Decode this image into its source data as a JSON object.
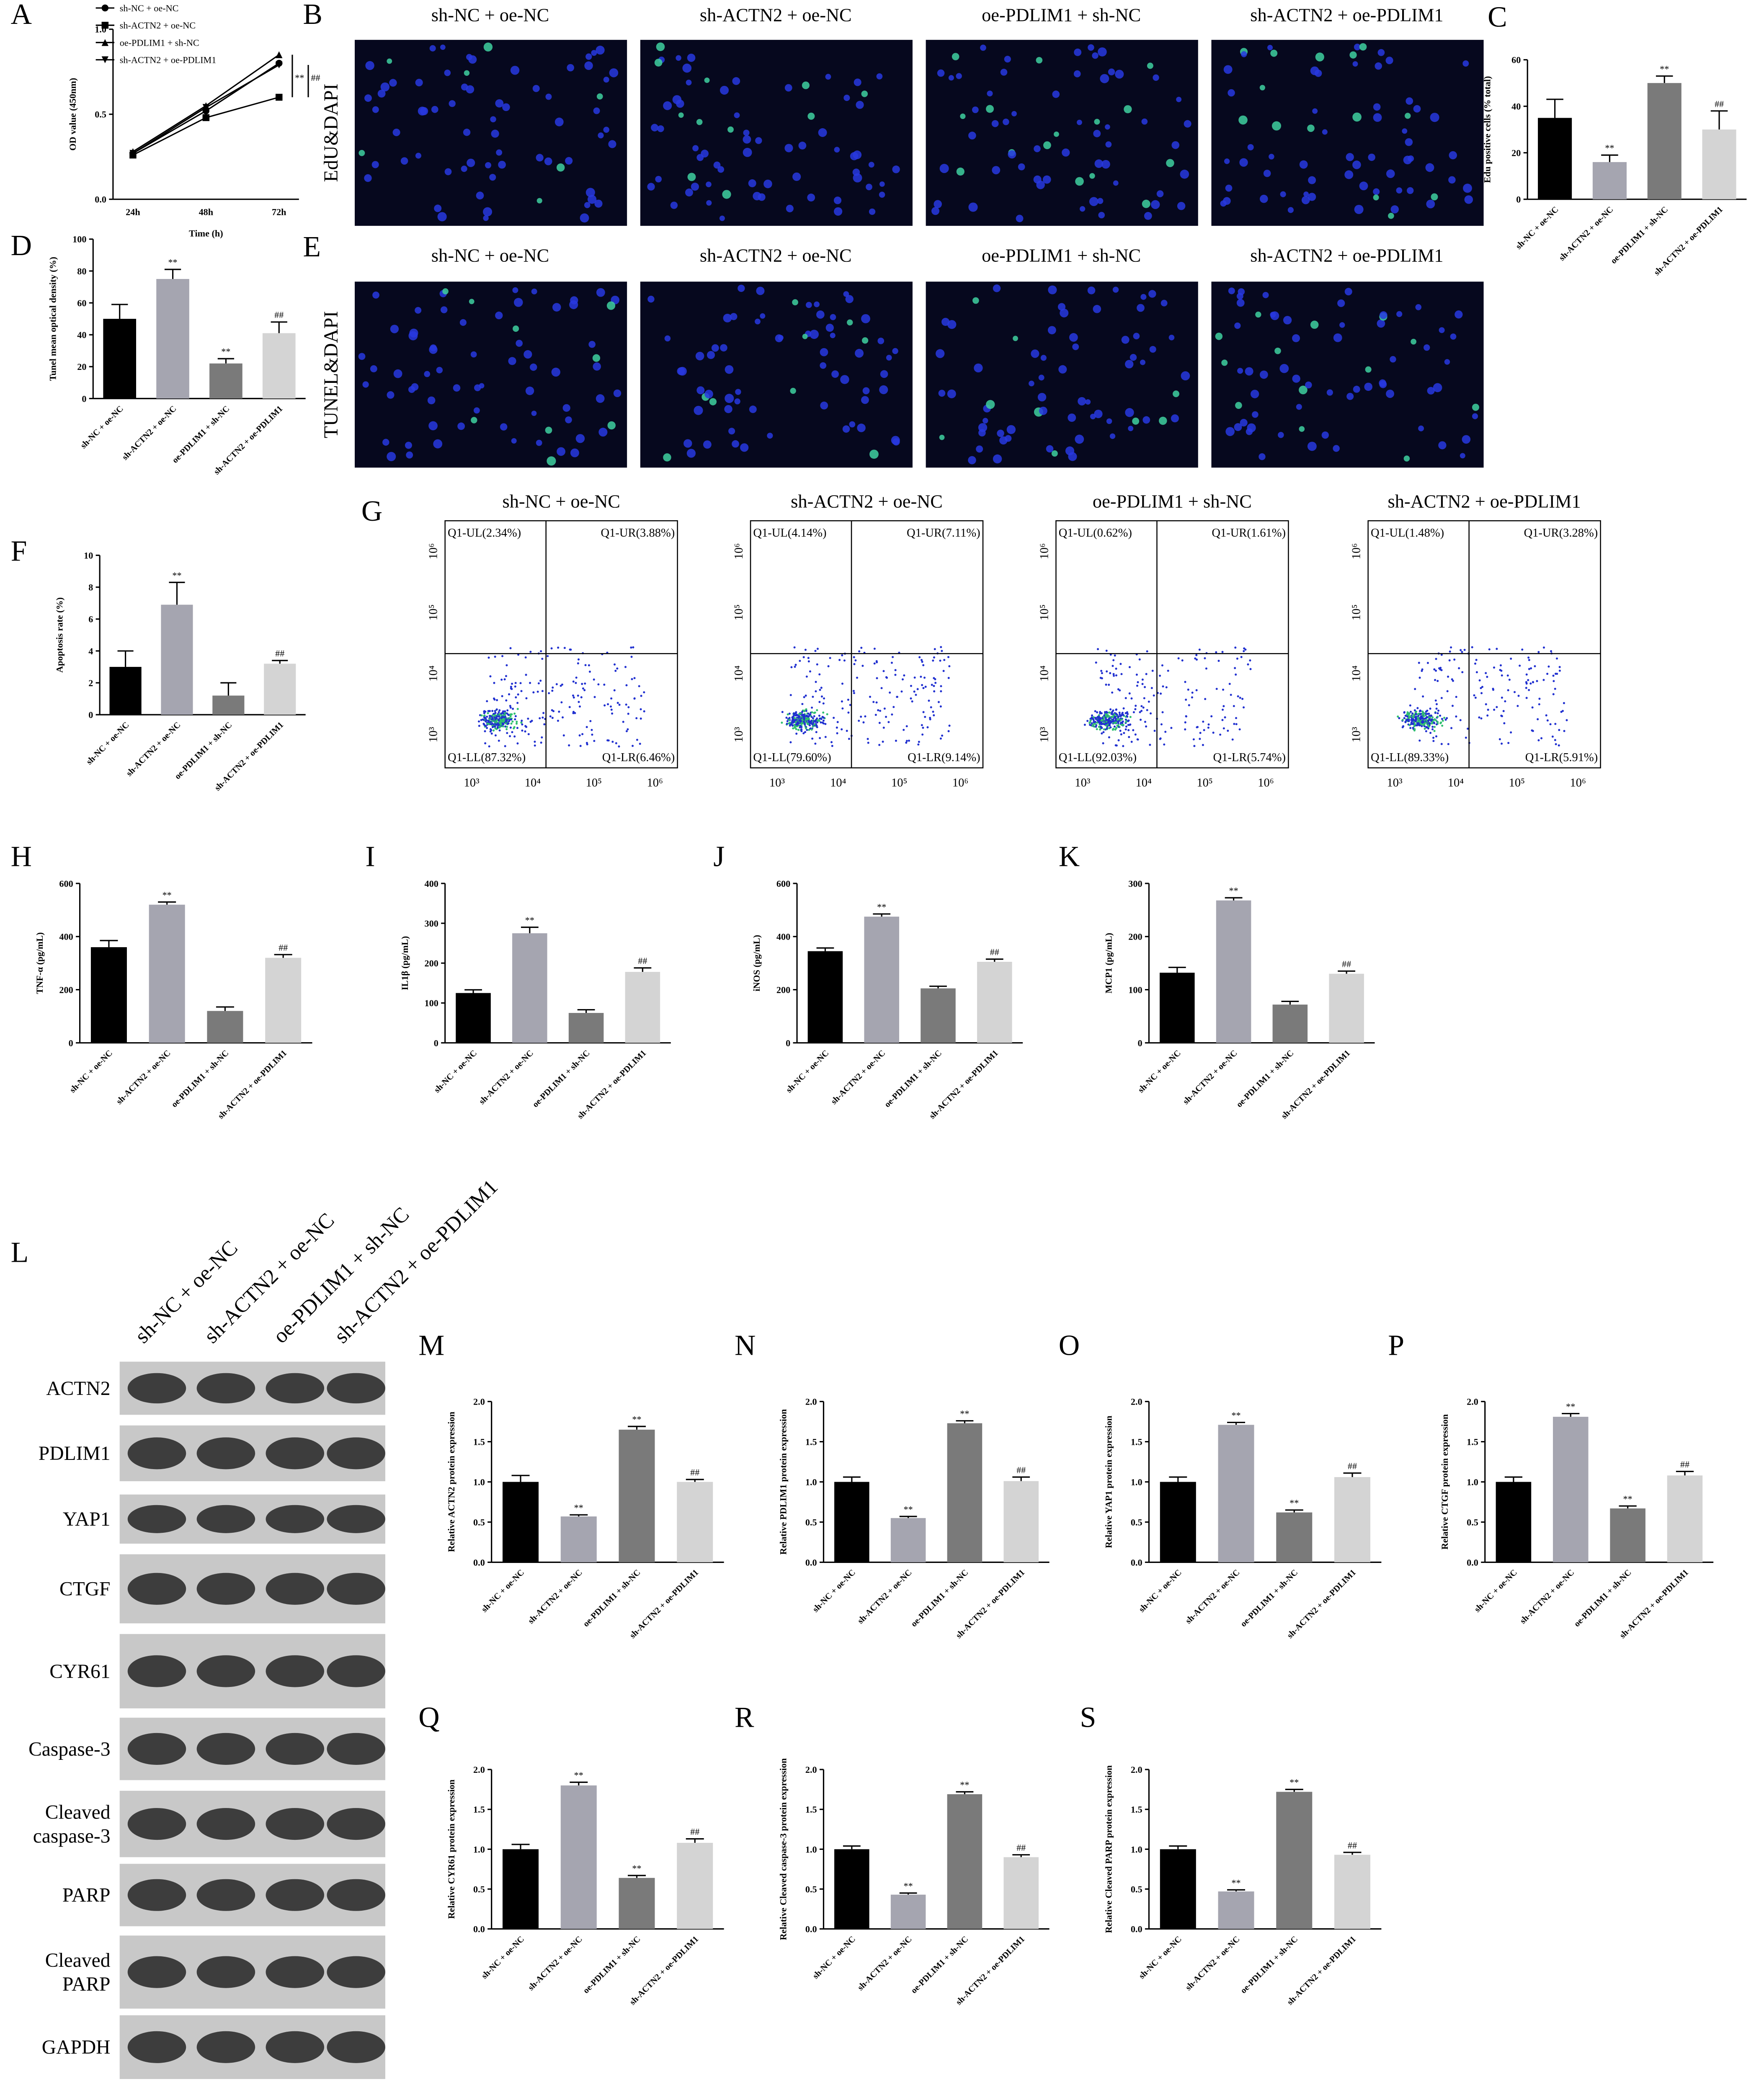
{
  "chart_data": [
    {
      "type": "line",
      "label": "A",
      "x_label": "Time (h)",
      "y_label": "OD value (450nm)",
      "categories": [
        "24h",
        "48h",
        "72h"
      ],
      "series": [
        {
          "name": "sh-NC + oe-NC",
          "color": "#000000",
          "marker": "circle",
          "values": [
            0.27,
            0.52,
            0.8
          ]
        },
        {
          "name": "sh-ACTN2 + oe-NC",
          "color": "#000000",
          "marker": "square",
          "values": [
            0.26,
            0.48,
            0.6
          ]
        },
        {
          "name": "oe-PDLIM1 + sh-NC",
          "color": "#000000",
          "marker": "triangle-up",
          "values": [
            0.28,
            0.55,
            0.85
          ]
        },
        {
          "name": "sh-ACTN2 + oe-PDLIM1",
          "color": "#000000",
          "marker": "triangle-down",
          "values": [
            0.27,
            0.54,
            0.79
          ]
        }
      ],
      "ylim": [
        0,
        1
      ],
      "yticks": [
        {
          "value": 0,
          "label": "0.0"
        },
        {
          "value": 0.5,
          "label": "0.5"
        },
        {
          "value": 1,
          "label": "1.0"
        }
      ],
      "annotations": [
        "**",
        "##"
      ]
    },
    {
      "type": "bar",
      "label": "C",
      "y_label": "Edu positive cells (% total)",
      "categories": [
        "sh-NC + oe-NC",
        "sh-ACTN2 + oe-NC",
        "oe-PDLIM1 + sh-NC",
        "sh-ACTN2 + oe-PDLIM1"
      ],
      "colors": [
        "#000000",
        "#a5a5b0",
        "#7a7a7a",
        "#d4d4d4"
      ],
      "values": [
        35,
        16,
        50,
        30
      ],
      "errors": [
        8,
        3,
        3,
        8
      ],
      "annotations": [
        null,
        "**",
        "**",
        "##"
      ],
      "ylim": [
        0,
        60
      ],
      "yticks": [
        0,
        20,
        40,
        60
      ]
    },
    {
      "type": "bar",
      "label": "D",
      "y_label": "Tunel mean optical density (%)",
      "categories": [
        "sh-NC + oe-NC",
        "sh-ACTN2 + oe-NC",
        "oe-PDLIM1 + sh-NC",
        "sh-ACTN2 + oe-PDLIM1"
      ],
      "colors": [
        "#000000",
        "#a5a5b0",
        "#7a7a7a",
        "#d4d4d4"
      ],
      "values": [
        50,
        75,
        22,
        41
      ],
      "errors": [
        9,
        6,
        3,
        7
      ],
      "annotations": [
        null,
        "**",
        "**",
        "##"
      ],
      "ylim": [
        0,
        100
      ],
      "yticks": [
        0,
        20,
        40,
        60,
        80,
        100
      ]
    },
    {
      "type": "bar",
      "label": "F",
      "y_label": "Apoptosis rate (%)",
      "categories": [
        "sh-NC + oe-NC",
        "sh-ACTN2 + oe-NC",
        "oe-PDLIM1 + sh-NC",
        "sh-ACTN2 + oe-PDLIM1"
      ],
      "colors": [
        "#000000",
        "#a5a5b0",
        "#7a7a7a",
        "#d4d4d4"
      ],
      "values": [
        3.0,
        6.9,
        1.2,
        3.2
      ],
      "errors": [
        1.0,
        1.4,
        0.8,
        0.2
      ],
      "annotations": [
        null,
        "**",
        null,
        "##"
      ],
      "ylim": [
        0,
        10
      ],
      "yticks": [
        0,
        2,
        4,
        6,
        8,
        10
      ]
    },
    {
      "type": "bar",
      "label": "H",
      "y_label": "TNF-α (pg/mL)",
      "categories": [
        "sh-NC + oe-NC",
        "sh-ACTN2 + oe-NC",
        "oe-PDLIM1 + sh-NC",
        "sh-ACTN2 + oe-PDLIM1"
      ],
      "colors": [
        "#000000",
        "#a5a5b0",
        "#7a7a7a",
        "#d4d4d4"
      ],
      "values": [
        360,
        520,
        120,
        320
      ],
      "errors": [
        25,
        10,
        15,
        12
      ],
      "annotations": [
        null,
        "**",
        null,
        "##"
      ],
      "ylim": [
        0,
        600
      ],
      "yticks": [
        0,
        200,
        400,
        600
      ]
    },
    {
      "type": "bar",
      "label": "I",
      "y_label": "IL1β (pg/mL)",
      "categories": [
        "sh-NC + oe-NC",
        "sh-ACTN2 + oe-NC",
        "oe-PDLIM1 + sh-NC",
        "sh-ACTN2 + oe-PDLIM1"
      ],
      "colors": [
        "#000000",
        "#a5a5b0",
        "#7a7a7a",
        "#d4d4d4"
      ],
      "values": [
        125,
        275,
        75,
        178
      ],
      "errors": [
        8,
        15,
        8,
        10
      ],
      "annotations": [
        null,
        "**",
        null,
        "##"
      ],
      "ylim": [
        0,
        400
      ],
      "yticks": [
        0,
        100,
        200,
        300,
        400
      ]
    },
    {
      "type": "bar",
      "label": "J",
      "y_label": "iNOS (pg/mL)",
      "categories": [
        "sh-NC + oe-NC",
        "sh-ACTN2 + oe-NC",
        "oe-PDLIM1 + sh-NC",
        "sh-ACTN2 + oe-PDLIM1"
      ],
      "colors": [
        "#000000",
        "#a5a5b0",
        "#7a7a7a",
        "#d4d4d4"
      ],
      "values": [
        345,
        475,
        205,
        305
      ],
      "errors": [
        12,
        10,
        8,
        10
      ],
      "annotations": [
        null,
        "**",
        null,
        "##"
      ],
      "ylim": [
        0,
        600
      ],
      "yticks": [
        0,
        200,
        400,
        600
      ]
    },
    {
      "type": "bar",
      "label": "K",
      "y_label": "MCP1 (pg/mL)",
      "categories": [
        "sh-NC + oe-NC",
        "sh-ACTN2 + oe-NC",
        "oe-PDLIM1 + sh-NC",
        "sh-ACTN2 + oe-PDLIM1"
      ],
      "colors": [
        "#000000",
        "#a5a5b0",
        "#7a7a7a",
        "#d4d4d4"
      ],
      "values": [
        132,
        268,
        72,
        130
      ],
      "errors": [
        10,
        5,
        6,
        5
      ],
      "annotations": [
        null,
        "**",
        null,
        "##"
      ],
      "ylim": [
        0,
        300
      ],
      "yticks": [
        0,
        100,
        200,
        300
      ]
    },
    {
      "type": "bar",
      "label": "M",
      "y_label": "Relative ACTN2 protein expression",
      "categories": [
        "sh-NC + oe-NC",
        "sh-ACTN2 + oe-NC",
        "oe-PDLIM1 + sh-NC",
        "sh-ACTN2 + oe-PDLIM1"
      ],
      "colors": [
        "#000000",
        "#a5a5b0",
        "#7a7a7a",
        "#d4d4d4"
      ],
      "values": [
        1.0,
        0.57,
        1.65,
        1.0
      ],
      "errors": [
        0.08,
        0.02,
        0.04,
        0.03
      ],
      "annotations": [
        null,
        "**",
        "**",
        "##"
      ],
      "ylim": [
        0,
        2
      ],
      "yticks": [
        {
          "value": 0,
          "label": "0.0"
        },
        {
          "value": 0.5,
          "label": "0.5"
        },
        {
          "value": 1,
          "label": "1.0"
        },
        {
          "value": 1.5,
          "label": "1.5"
        },
        {
          "value": 2,
          "label": "2.0"
        }
      ]
    },
    {
      "type": "bar",
      "label": "N",
      "y_label": "Relative PDLIM1 protein expression",
      "categories": [
        "sh-NC + oe-NC",
        "sh-ACTN2 + oe-NC",
        "oe-PDLIM1 + sh-NC",
        "sh-ACTN2 + oe-PDLIM1"
      ],
      "colors": [
        "#000000",
        "#a5a5b0",
        "#7a7a7a",
        "#d4d4d4"
      ],
      "values": [
        1.0,
        0.55,
        1.73,
        1.01
      ],
      "errors": [
        0.06,
        0.02,
        0.03,
        0.05
      ],
      "annotations": [
        null,
        "**",
        "**",
        "##"
      ],
      "ylim": [
        0,
        2
      ],
      "yticks": [
        {
          "value": 0,
          "label": "0.0"
        },
        {
          "value": 0.5,
          "label": "0.5"
        },
        {
          "value": 1,
          "label": "1.0"
        },
        {
          "value": 1.5,
          "label": "1.5"
        },
        {
          "value": 2,
          "label": "2.0"
        }
      ]
    },
    {
      "type": "bar",
      "label": "O",
      "y_label": "Relative YAP1 protein expression",
      "categories": [
        "sh-NC + oe-NC",
        "sh-ACTN2 + oe-NC",
        "oe-PDLIM1 + sh-NC",
        "sh-ACTN2 + oe-PDLIM1"
      ],
      "colors": [
        "#000000",
        "#a5a5b0",
        "#7a7a7a",
        "#d4d4d4"
      ],
      "values": [
        1.0,
        1.71,
        0.62,
        1.06
      ],
      "errors": [
        0.06,
        0.03,
        0.03,
        0.05
      ],
      "annotations": [
        null,
        "**",
        "**",
        "##"
      ],
      "ylim": [
        0,
        2
      ],
      "yticks": [
        {
          "value": 0,
          "label": "0.0"
        },
        {
          "value": 0.5,
          "label": "0.5"
        },
        {
          "value": 1,
          "label": "1.0"
        },
        {
          "value": 1.5,
          "label": "1.5"
        },
        {
          "value": 2,
          "label": "2.0"
        }
      ]
    },
    {
      "type": "bar",
      "label": "P",
      "y_label": "Relative CTGF protein expression",
      "categories": [
        "sh-NC + oe-NC",
        "sh-ACTN2 + oe-NC",
        "oe-PDLIM1 + sh-NC",
        "sh-ACTN2 + oe-PDLIM1"
      ],
      "colors": [
        "#000000",
        "#a5a5b0",
        "#7a7a7a",
        "#d4d4d4"
      ],
      "values": [
        1.0,
        1.81,
        0.67,
        1.08
      ],
      "errors": [
        0.06,
        0.04,
        0.03,
        0.05
      ],
      "annotations": [
        null,
        "**",
        "**",
        "##"
      ],
      "ylim": [
        0,
        2
      ],
      "yticks": [
        {
          "value": 0,
          "label": "0.0"
        },
        {
          "value": 0.5,
          "label": "0.5"
        },
        {
          "value": 1,
          "label": "1.0"
        },
        {
          "value": 1.5,
          "label": "1.5"
        },
        {
          "value": 2,
          "label": "2.0"
        }
      ]
    },
    {
      "type": "bar",
      "label": "Q",
      "y_label": "Relative CYR61 protein expression",
      "categories": [
        "sh-NC + oe-NC",
        "sh-ACTN2 + oe-NC",
        "oe-PDLIM1 + sh-NC",
        "sh-ACTN2 + oe-PDLIM1"
      ],
      "colors": [
        "#000000",
        "#a5a5b0",
        "#7a7a7a",
        "#d4d4d4"
      ],
      "values": [
        1.0,
        1.8,
        0.64,
        1.08
      ],
      "errors": [
        0.06,
        0.04,
        0.03,
        0.05
      ],
      "annotations": [
        null,
        "**",
        "**",
        "##"
      ],
      "ylim": [
        0,
        2
      ],
      "yticks": [
        {
          "value": 0,
          "label": "0.0"
        },
        {
          "value": 0.5,
          "label": "0.5"
        },
        {
          "value": 1,
          "label": "1.0"
        },
        {
          "value": 1.5,
          "label": "1.5"
        },
        {
          "value": 2,
          "label": "2.0"
        }
      ]
    },
    {
      "type": "bar",
      "label": "R",
      "y_label": "Relative Cleaved caspase-3 protein expression",
      "categories": [
        "sh-NC + oe-NC",
        "sh-ACTN2 + oe-NC",
        "oe-PDLIM1 + sh-NC",
        "sh-ACTN2 + oe-PDLIM1"
      ],
      "colors": [
        "#000000",
        "#a5a5b0",
        "#7a7a7a",
        "#d4d4d4"
      ],
      "values": [
        1.0,
        0.43,
        1.69,
        0.9
      ],
      "errors": [
        0.04,
        0.02,
        0.03,
        0.03
      ],
      "annotations": [
        null,
        "**",
        "**",
        "##"
      ],
      "ylim": [
        0,
        2
      ],
      "yticks": [
        {
          "value": 0,
          "label": "0.0"
        },
        {
          "value": 0.5,
          "label": "0.5"
        },
        {
          "value": 1,
          "label": "1.0"
        },
        {
          "value": 1.5,
          "label": "1.5"
        },
        {
          "value": 2,
          "label": "2.0"
        }
      ]
    },
    {
      "type": "bar",
      "label": "S",
      "y_label": "Relative Cleaved PARP protein expression",
      "categories": [
        "sh-NC + oe-NC",
        "sh-ACTN2 + oe-NC",
        "oe-PDLIM1 + sh-NC",
        "sh-ACTN2 + oe-PDLIM1"
      ],
      "colors": [
        "#000000",
        "#a5a5b0",
        "#7a7a7a",
        "#d4d4d4"
      ],
      "values": [
        1.0,
        0.47,
        1.72,
        0.93
      ],
      "errors": [
        0.04,
        0.02,
        0.03,
        0.03
      ],
      "annotations": [
        null,
        "**",
        "**",
        "##"
      ],
      "ylim": [
        0,
        2
      ],
      "yticks": [
        {
          "value": 0,
          "label": "0.0"
        },
        {
          "value": 0.5,
          "label": "0.5"
        },
        {
          "value": 1,
          "label": "1.0"
        },
        {
          "value": 1.5,
          "label": "1.5"
        },
        {
          "value": 2,
          "label": "2.0"
        }
      ]
    }
  ],
  "image_panels": [
    {
      "label": "B",
      "stain": "EdU&DAPI",
      "titles": [
        "sh-NC + oe-NC",
        "sh-ACTN2 + oe-NC",
        "oe-PDLIM1 + sh-NC",
        "sh-ACTN2 + oe-PDLIM1"
      ]
    },
    {
      "label": "E",
      "stain": "TUNEL&DAPI",
      "titles": [
        "sh-NC + oe-NC",
        "sh-ACTN2 + oe-NC",
        "oe-PDLIM1 + sh-NC",
        "sh-ACTN2 + oe-PDLIM1"
      ]
    }
  ],
  "flow_cytometry": {
    "label": "G",
    "axis_ticks": [
      "10³",
      "10⁴",
      "10⁵",
      "10⁶"
    ],
    "plots": [
      {
        "title": "sh-NC + oe-NC",
        "quadrants": {
          "UL": "Q1-UL(2.34%)",
          "UR": "Q1-UR(3.88%)",
          "LL": "Q1-LL(87.32%)",
          "LR": "Q1-LR(6.46%)"
        }
      },
      {
        "title": "sh-ACTN2 + oe-NC",
        "quadrants": {
          "UL": "Q1-UL(4.14%)",
          "UR": "Q1-UR(7.11%)",
          "LL": "Q1-LL(79.60%)",
          "LR": "Q1-LR(9.14%)"
        }
      },
      {
        "title": "oe-PDLIM1 + sh-NC",
        "quadrants": {
          "UL": "Q1-UL(0.62%)",
          "UR": "Q1-UR(1.61%)",
          "LL": "Q1-LL(92.03%)",
          "LR": "Q1-LR(5.74%)"
        }
      },
      {
        "title": "sh-ACTN2 + oe-PDLIM1",
        "quadrants": {
          "UL": "Q1-UL(1.48%)",
          "UR": "Q1-UR(3.28%)",
          "LL": "Q1-LL(89.33%)",
          "LR": "Q1-LR(5.91%)"
        }
      }
    ]
  },
  "western_blot": {
    "label": "L",
    "lanes": [
      "sh-NC + oe-NC",
      "sh-ACTN2 + oe-NC",
      "oe-PDLIM1 + sh-NC",
      "sh-ACTN2 + oe-PDLIM1"
    ],
    "proteins": [
      [
        "ACTN2"
      ],
      [
        "PDLIM1"
      ],
      [
        "YAP1"
      ],
      [
        "CTGF"
      ],
      [
        "CYR61"
      ],
      [
        "Caspase-3"
      ],
      [
        "Cleaved",
        "caspase-3"
      ],
      [
        "PARP"
      ],
      [
        "Cleaved",
        "PARP"
      ],
      [
        "GAPDH"
      ]
    ]
  }
}
